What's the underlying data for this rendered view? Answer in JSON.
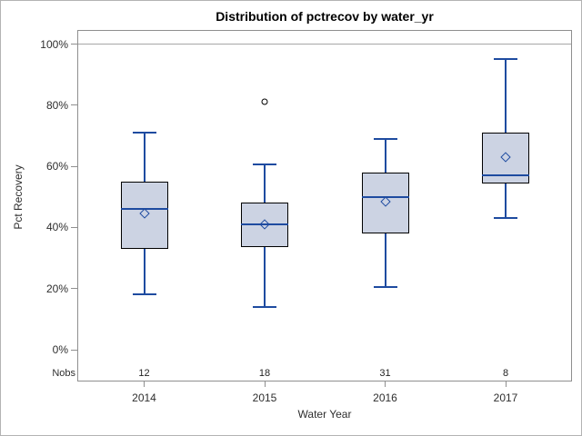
{
  "chart_data": {
    "type": "box",
    "title": "Distribution of pctrecov by water_yr",
    "xlabel": "Water Year",
    "ylabel": "Pct Recovery",
    "nobs_label": "Nobs",
    "categories": [
      "2014",
      "2015",
      "2016",
      "2017"
    ],
    "nobs": [
      12,
      18,
      31,
      8
    ],
    "ylim": [
      0,
      100
    ],
    "yticks": [
      {
        "value": 0,
        "label": "0%"
      },
      {
        "value": 20,
        "label": "20%"
      },
      {
        "value": 40,
        "label": "40%"
      },
      {
        "value": 60,
        "label": "60%"
      },
      {
        "value": 80,
        "label": "80%"
      },
      {
        "value": 100,
        "label": "100%"
      }
    ],
    "refline_value": 100,
    "grid": "off",
    "legend": "none",
    "series": [
      {
        "category": "2014",
        "nobs": 12,
        "whisker_low": 18,
        "q1": 33,
        "median": 46,
        "mean": 44.5,
        "q3": 55,
        "whisker_high": 71,
        "outliers": []
      },
      {
        "category": "2015",
        "nobs": 18,
        "whisker_low": 14,
        "q1": 33.5,
        "median": 41,
        "mean": 41,
        "q3": 48,
        "whisker_high": 60.5,
        "outliers": [
          81
        ]
      },
      {
        "category": "2016",
        "nobs": 31,
        "whisker_low": 20.5,
        "q1": 38,
        "median": 50,
        "mean": 48.5,
        "q3": 58,
        "whisker_high": 69,
        "outliers": []
      },
      {
        "category": "2017",
        "nobs": 8,
        "whisker_low": 43,
        "q1": 54.5,
        "median": 57,
        "mean": 63,
        "q3": 71,
        "whisker_high": 95,
        "outliers": []
      }
    ],
    "colors": {
      "box_fill": "#ccd3e3",
      "box_border": "#000000",
      "line_blue": "#1e4ba0",
      "frame_gray": "#8f8f8f",
      "refline_gray": "#a6a6a6",
      "tick_text": "#2e2e2e",
      "outlier_stroke": "#000000",
      "background": "#ffffff"
    }
  }
}
